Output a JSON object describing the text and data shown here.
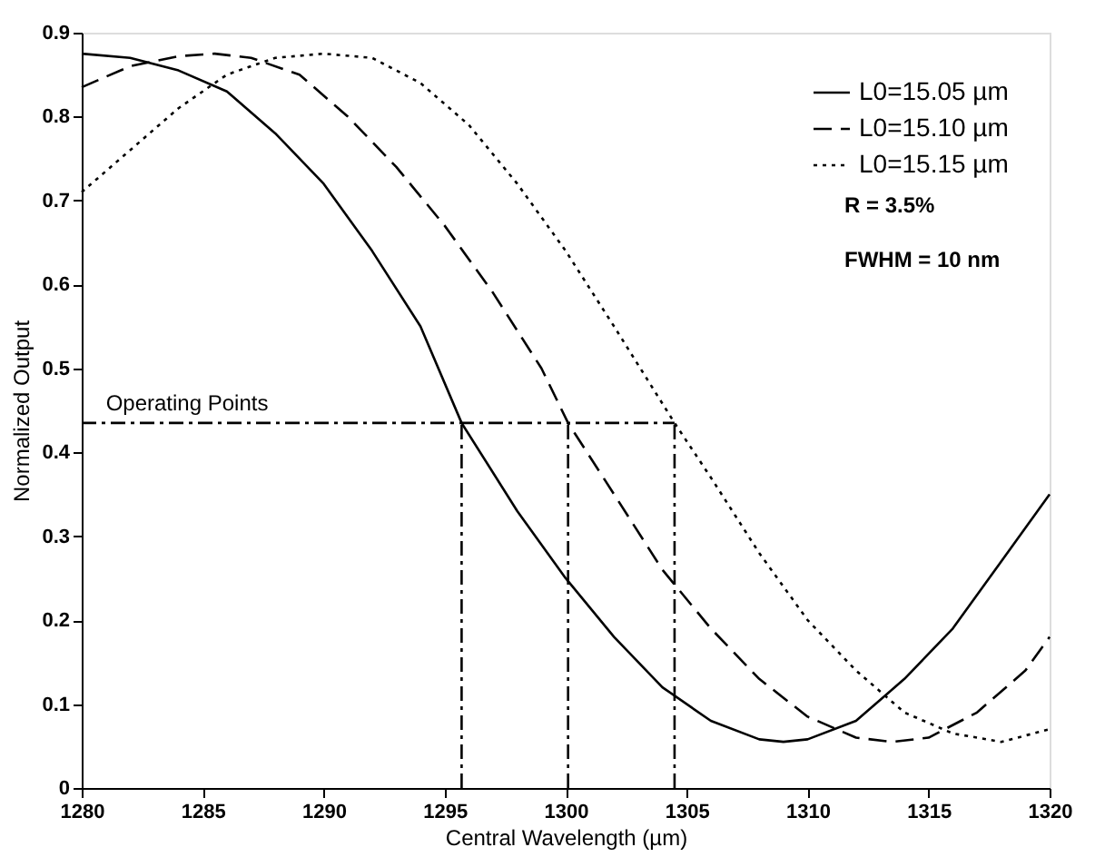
{
  "chart_data": {
    "type": "line",
    "xlabel": "Central Wavelength (µm)",
    "ylabel": "Normalized Output",
    "xlim": [
      1280,
      1320
    ],
    "xticks": [
      1280,
      1285,
      1290,
      1295,
      1300,
      1305,
      1310,
      1315,
      1320
    ],
    "ylim": [
      0,
      0.9
    ],
    "yticks": [
      0,
      0.1,
      0.2,
      0.3,
      0.4,
      0.5,
      0.6,
      0.7,
      0.8,
      0.9
    ],
    "grid": false,
    "legend": "top right",
    "marker": "none",
    "annotations": [
      {
        "text": "Operating Points",
        "x": 1281,
        "y": 0.435
      },
      "R = 3.5%",
      "FWHM = 10 nm"
    ],
    "series": [
      {
        "name": "L0=15.05 µm",
        "color": "#000000",
        "line_style": "solid",
        "x": [
          1280,
          1282,
          1284,
          1286,
          1288,
          1290,
          1292,
          1294,
          1295.7,
          1298,
          1300,
          1302,
          1304,
          1306,
          1308,
          1309,
          1310,
          1312,
          1314,
          1316,
          1318,
          1320
        ],
        "values": [
          0.875,
          0.87,
          0.855,
          0.83,
          0.78,
          0.72,
          0.64,
          0.55,
          0.435,
          0.33,
          0.25,
          0.18,
          0.12,
          0.08,
          0.058,
          0.055,
          0.058,
          0.08,
          0.13,
          0.19,
          0.27,
          0.35
        ]
      },
      {
        "name": "L0=15.10 µm",
        "color": "#000000",
        "line_style": "dashed",
        "x": [
          1280,
          1282,
          1284,
          1285.5,
          1287,
          1289,
          1291,
          1293,
          1295,
          1297,
          1299,
          1300.1,
          1302,
          1304,
          1306,
          1308,
          1310,
          1312,
          1313.5,
          1315,
          1317,
          1319,
          1320
        ],
        "values": [
          0.835,
          0.86,
          0.872,
          0.875,
          0.87,
          0.85,
          0.8,
          0.74,
          0.67,
          0.59,
          0.5,
          0.435,
          0.35,
          0.26,
          0.19,
          0.13,
          0.085,
          0.06,
          0.055,
          0.06,
          0.09,
          0.14,
          0.18
        ]
      },
      {
        "name": "L0=15.15 µm",
        "color": "#000000",
        "line_style": "dotted",
        "x": [
          1280,
          1282,
          1284,
          1286,
          1288,
          1290,
          1292,
          1294,
          1296,
          1298,
          1300,
          1302,
          1304.5,
          1306,
          1308,
          1310,
          1312,
          1314,
          1316,
          1318,
          1320
        ],
        "values": [
          0.71,
          0.76,
          0.81,
          0.85,
          0.87,
          0.875,
          0.87,
          0.84,
          0.79,
          0.72,
          0.64,
          0.55,
          0.435,
          0.37,
          0.28,
          0.2,
          0.14,
          0.09,
          0.065,
          0.055,
          0.07
        ]
      },
      {
        "color": "#000000",
        "line_style": "dashdot",
        "x": [
          1280,
          1304.5
        ],
        "values": [
          0.435,
          0.435
        ]
      },
      {
        "color": "#000000",
        "line_style": "dashdot",
        "x": [
          1295.7,
          1295.7
        ],
        "values": [
          0,
          0.435
        ]
      },
      {
        "color": "#000000",
        "line_style": "dashdot",
        "x": [
          1300.1,
          1300.1
        ],
        "values": [
          0,
          0.435
        ]
      },
      {
        "color": "#000000",
        "line_style": "dashdot",
        "x": [
          1304.5,
          1304.5
        ],
        "values": [
          0,
          0.435
        ]
      }
    ]
  }
}
